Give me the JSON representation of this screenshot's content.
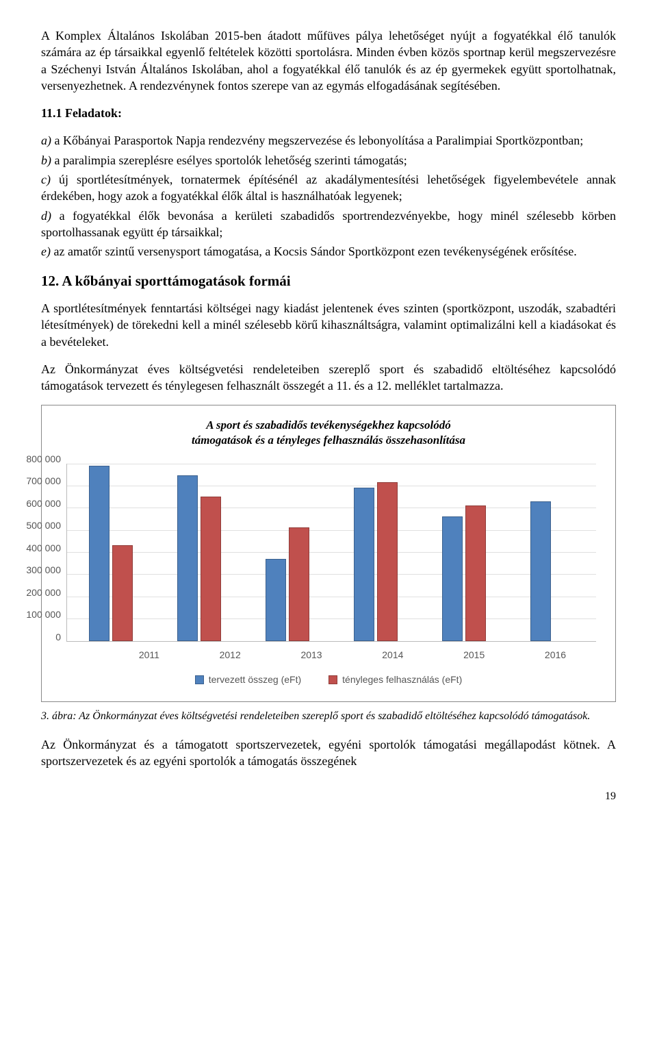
{
  "para1": "A Komplex Általános Iskolában 2015-ben átadott műfüves pálya lehetőséget nyújt a fogyatékkal élő tanulók számára az ép társaikkal egyenlő feltételek közötti sportolásra. Minden évben közös sportnap kerül megszervezésre a Széchenyi István Általános Iskolában, ahol a fogyatékkal élő tanulók és az ép gyermekek együtt sportolhatnak, versenyezhetnek. A rendezvénynek fontos szerepe van az egymás elfogadásának segítésében.",
  "tasks_label": "11.1  Feladatok:",
  "tasks": {
    "a": "a)",
    "a_text": " a Kőbányai Parasportok Napja rendezvény megszervezése és lebonyolítása a Paralimpiai Sportközpontban;",
    "b": "b)",
    "b_text": " a paralimpia szereplésre esélyes sportolók lehetőség szerinti támogatás;",
    "c": "c)",
    "c_text": " új sportlétesítmények, tornatermek építésénél az akadálymentesítési lehetőségek figyelembevétele annak érdekében, hogy azok a fogyatékkal élők által is használhatóak legyenek;",
    "d": "d)",
    "d_text": " a fogyatékkal élők bevonása a kerületi szabadidős sportrendezvényekbe, hogy minél szélesebb körben sportolhassanak együtt ép társaikkal;",
    "e": "e)",
    "e_text": " az amatőr szintű versenysport támogatása, a Kocsis Sándor Sportközpont ezen tevékenységének erősítése."
  },
  "section12_title": "12. A kőbányai sporttámogatások formái",
  "para2": "A sportlétesítmények fenntartási költségei nagy kiadást jelentenek éves szinten (sportközpont, uszodák, szabadtéri létesítmények) de törekedni kell a minél szélesebb körű kihasználtságra, valamint optimalizálni kell a kiadásokat és a bevételeket.",
  "para3": "Az Önkormányzat éves költségvetési rendeleteiben szereplő sport és szabadidő eltöltéséhez kapcsolódó támogatások tervezett és ténylegesen felhasznált összegét a 11. és a 12. melléklet tartalmazza.",
  "chart": {
    "title_line1": "A sport és szabadidős tevékenységekhez kapcsolódó",
    "title_line2": "támogatások és a tényleges felhasználás összehasonlítása",
    "categories": [
      "2011",
      "2012",
      "2013",
      "2014",
      "2015",
      "2016"
    ],
    "yticks": [
      "800 000",
      "700 000",
      "600 000",
      "500 000",
      "400 000",
      "300 000",
      "200 000",
      "100 000",
      "0"
    ],
    "ymax": 800000,
    "series": [
      {
        "name": "tervezett összeg (eFt)",
        "color": "#4f81bd",
        "values": [
          790000,
          745000,
          370000,
          690000,
          560000,
          630000
        ]
      },
      {
        "name": "tényleges felhasználás (eFt)",
        "color": "#c0504d",
        "values": [
          430000,
          650000,
          510000,
          715000,
          610000,
          0
        ]
      }
    ],
    "grid_color": "#e0e0e0",
    "background": "#ffffff"
  },
  "caption": "3. ábra: Az Önkormányzat éves költségvetési rendeleteiben szereplő sport és szabadidő eltöltéséhez kapcsolódó támogatások.",
  "para4": "Az Önkormányzat és a támogatott sportszervezetek, egyéni sportolók támogatási megállapodást kötnek. A sportszervezetek és az egyéni sportolók a támogatás összegének",
  "page_number": "19"
}
